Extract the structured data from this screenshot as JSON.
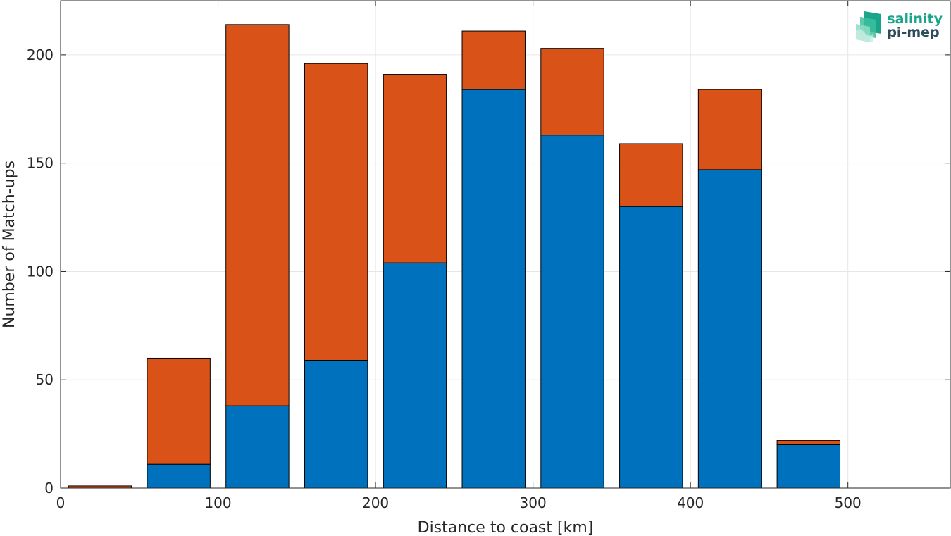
{
  "chart_data": {
    "type": "bar",
    "stacked": true,
    "x": [
      25,
      75,
      125,
      175,
      225,
      275,
      325,
      375,
      425,
      475,
      525
    ],
    "series": [
      {
        "color": "#0072BD",
        "values": [
          0,
          11,
          38,
          59,
          104,
          184,
          163,
          130,
          147,
          20,
          0
        ]
      },
      {
        "color": "#D95319",
        "values": [
          1,
          49,
          176,
          137,
          87,
          27,
          40,
          29,
          37,
          2,
          0
        ]
      }
    ],
    "xlabel": "Distance to coast [km]",
    "ylabel": "Number of Match-ups",
    "xlim": [
      0,
      565
    ],
    "ylim": [
      0,
      225
    ],
    "xticks": [
      0,
      100,
      200,
      300,
      400,
      500
    ],
    "yticks": [
      0,
      50,
      100,
      150,
      200
    ],
    "grid": true
  },
  "logo": {
    "line1": "salinity",
    "line2": "pi-mep"
  }
}
